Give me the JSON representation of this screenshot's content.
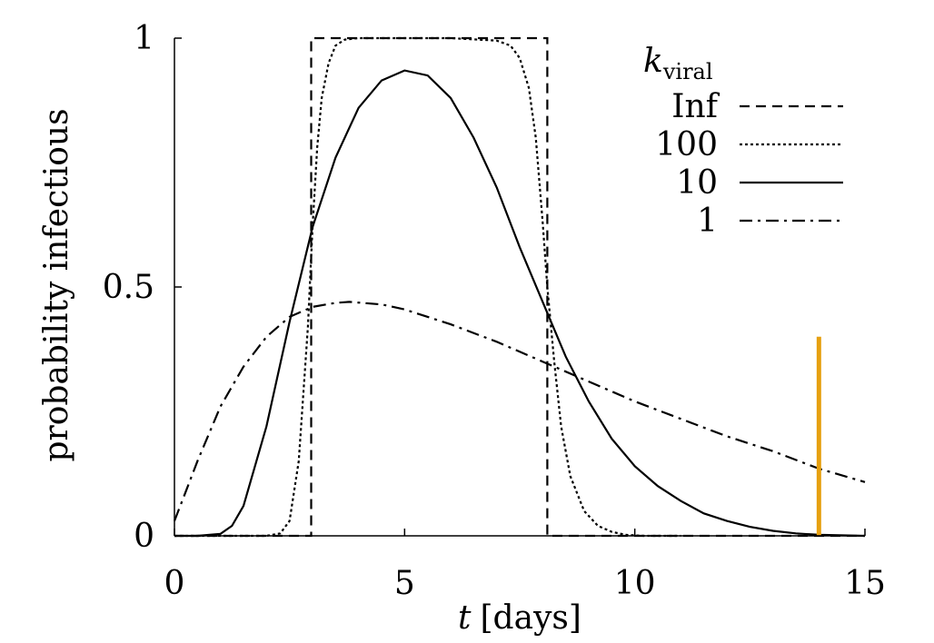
{
  "chart_data": {
    "type": "line",
    "xlabel_var": "t",
    "xlabel_unit": "[days]",
    "ylabel": "probability infectious",
    "xlim": [
      0,
      15
    ],
    "ylim": [
      0,
      1
    ],
    "x_ticks": [
      0,
      5,
      10,
      15
    ],
    "x_tick_labels": [
      "0",
      "5",
      "10",
      "15"
    ],
    "y_ticks": [
      0,
      0.5,
      1
    ],
    "y_tick_labels": [
      "0",
      "0.5",
      "1"
    ],
    "grid": false,
    "legend": {
      "title_var": "k",
      "title_subscript": "viral",
      "placement": "top-right"
    },
    "series": [
      {
        "name": "Inf",
        "dash": "dashed",
        "x": [
          0,
          2.97,
          2.97,
          8.1,
          8.1,
          15
        ],
        "y": [
          0,
          0,
          1,
          1,
          0,
          0
        ]
      },
      {
        "name": "100",
        "dash": "dotted",
        "x": [
          0,
          2.0,
          2.3,
          2.5,
          2.7,
          2.9,
          3.0,
          3.1,
          3.2,
          3.35,
          3.5,
          3.7,
          4.0,
          5.0,
          6.0,
          7.0,
          7.3,
          7.5,
          7.7,
          7.85,
          8.0,
          8.1,
          8.25,
          8.4,
          8.6,
          8.9,
          9.2,
          9.5,
          9.8,
          10.2,
          11.0
        ],
        "y": [
          0,
          0,
          0.005,
          0.03,
          0.15,
          0.42,
          0.62,
          0.78,
          0.88,
          0.95,
          0.985,
          0.997,
          1,
          1,
          1,
          0.995,
          0.985,
          0.96,
          0.9,
          0.8,
          0.63,
          0.5,
          0.35,
          0.22,
          0.12,
          0.05,
          0.02,
          0.008,
          0.002,
          0,
          0
        ]
      },
      {
        "name": "10",
        "dash": "solid",
        "x": [
          0,
          0.5,
          1.0,
          1.25,
          1.5,
          2.0,
          2.5,
          3.0,
          3.5,
          4.0,
          4.5,
          5.0,
          5.5,
          6.0,
          6.5,
          7.0,
          7.5,
          8.0,
          8.5,
          9.0,
          9.5,
          10.0,
          10.5,
          11.0,
          11.5,
          12.0,
          12.5,
          13.0,
          13.5,
          14.0,
          15.0
        ],
        "y": [
          0,
          0,
          0.004,
          0.02,
          0.06,
          0.22,
          0.43,
          0.62,
          0.76,
          0.86,
          0.915,
          0.935,
          0.925,
          0.88,
          0.8,
          0.7,
          0.58,
          0.47,
          0.36,
          0.27,
          0.195,
          0.14,
          0.1,
          0.07,
          0.045,
          0.03,
          0.018,
          0.01,
          0.005,
          0.002,
          0
        ]
      },
      {
        "name": "1",
        "dash": "dashdot",
        "x": [
          0,
          0.25,
          0.5,
          1.0,
          1.5,
          2.0,
          2.5,
          3.0,
          3.5,
          3.8,
          4.5,
          5.0,
          6.0,
          7.0,
          8.0,
          9.0,
          10.0,
          11.0,
          12.0,
          13.0,
          14.0,
          15.0
        ],
        "y": [
          0.03,
          0.09,
          0.15,
          0.26,
          0.34,
          0.4,
          0.44,
          0.46,
          0.468,
          0.47,
          0.465,
          0.455,
          0.425,
          0.39,
          0.35,
          0.31,
          0.27,
          0.235,
          0.2,
          0.17,
          0.135,
          0.108
        ]
      }
    ],
    "marker": {
      "x": 14,
      "y_from": 0,
      "y_to": 0.4,
      "color": "#e6a010"
    }
  }
}
